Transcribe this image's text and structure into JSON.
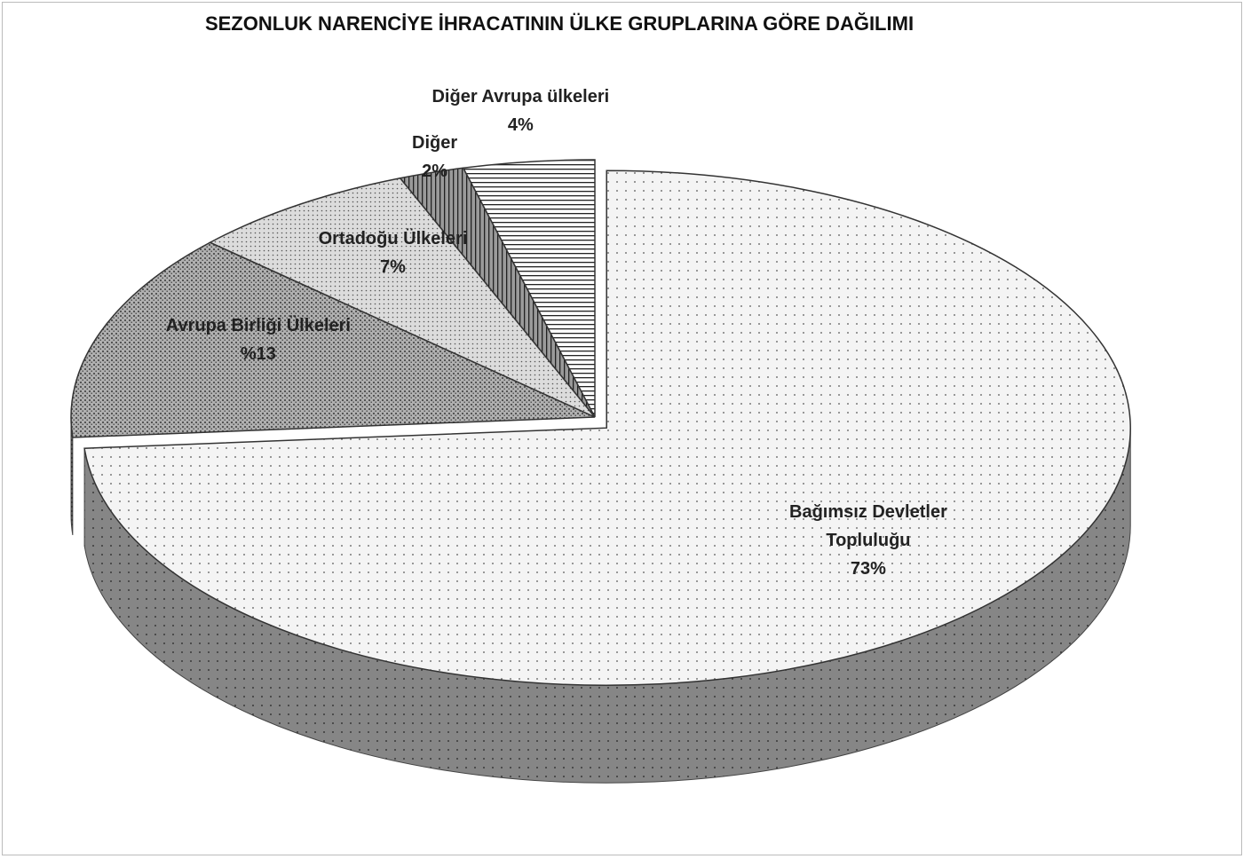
{
  "chart_data": {
    "type": "pie",
    "title": "SEZONLUK NARENCİYE İHRACATININ ÜLKE GRUPLARINA GÖRE DAĞILIMI",
    "categories": [
      "Bağımsız Devletler Topluluğu",
      "Avrupa Birliği Ülkeleri",
      "Ortadoğu Ülkeleri",
      "Diğer",
      "Diğer Avrupa ülkeleri"
    ],
    "values": [
      73,
      13,
      7,
      2,
      4
    ],
    "value_labels": [
      "73%",
      "%13",
      "7%",
      "2%",
      "4%"
    ],
    "colors": [
      "#f4f4f4",
      "#b0b0b0",
      "#dcdcdc",
      "#9a9a9a",
      "#ffffff"
    ],
    "explode": [
      0
    ]
  }
}
